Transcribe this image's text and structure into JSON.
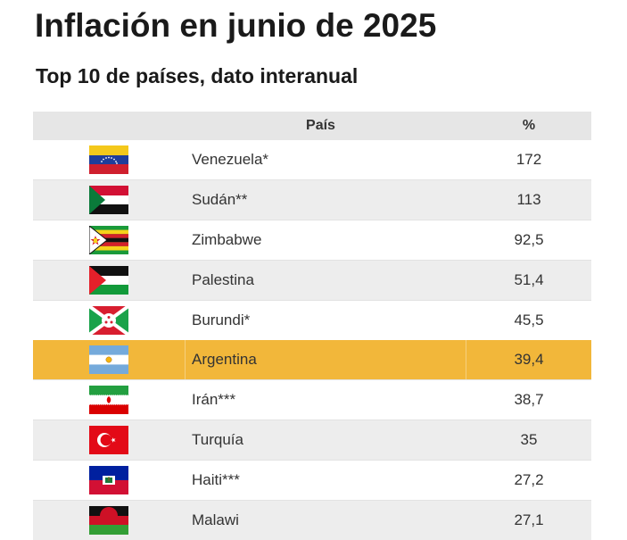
{
  "title": "Inflación en junio de 2025",
  "subtitle": "Top 10 de países, dato interanual",
  "headers": {
    "country": "País",
    "value": "%"
  },
  "highlight_color": "#f2b73a",
  "chart_data": {
    "type": "table",
    "columns": [
      "País",
      "%"
    ],
    "rows": [
      {
        "flag": "venezuela-flag",
        "country": "Venezuela*",
        "value": "172"
      },
      {
        "flag": "sudan-flag",
        "country": "Sudán**",
        "value": "113"
      },
      {
        "flag": "zimbabwe-flag",
        "country": "Zimbabwe",
        "value": "92,5"
      },
      {
        "flag": "palestine-flag",
        "country": "Palestina",
        "value": "51,4"
      },
      {
        "flag": "burundi-flag",
        "country": "Burundi*",
        "value": "45,5"
      },
      {
        "flag": "argentina-flag",
        "country": "Argentina",
        "value": "39,4",
        "highlight": true
      },
      {
        "flag": "iran-flag",
        "country": "Irán***",
        "value": "38,7"
      },
      {
        "flag": "turkey-flag",
        "country": "Turquía",
        "value": "35"
      },
      {
        "flag": "haiti-flag",
        "country": "Haiti***",
        "value": "27,2"
      },
      {
        "flag": "malawi-flag",
        "country": "Malawi",
        "value": "27,1"
      }
    ]
  }
}
